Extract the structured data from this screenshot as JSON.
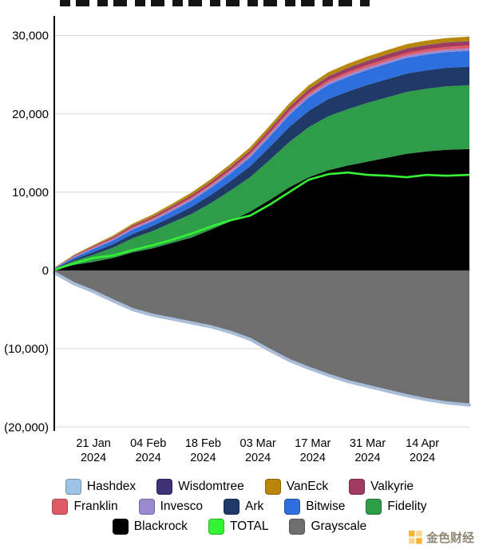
{
  "watermark": {
    "text": "金色财经"
  },
  "legend": {
    "rows": [
      [
        "Hashdex",
        "Wisdomtree",
        "VanEck",
        "Valkyrie"
      ],
      [
        "Franklin",
        "Invesco",
        "Ark",
        "Bitwise",
        "Fidelity"
      ],
      [
        "Blackrock",
        "TOTAL",
        "Grayscale"
      ]
    ]
  },
  "chart_data": {
    "type": "area",
    "stacked": true,
    "ylim": [
      -20500,
      32500
    ],
    "x_days": [
      0,
      5,
      10,
      15,
      20,
      25,
      30,
      35,
      40,
      45,
      50,
      55,
      60,
      65,
      70,
      75,
      80,
      85,
      90,
      95,
      100,
      106
    ],
    "x_ticks": [
      {
        "day": 10,
        "line1": "21 Jan",
        "line2": "2024"
      },
      {
        "day": 24,
        "line1": "04 Feb",
        "line2": "2024"
      },
      {
        "day": 38,
        "line1": "18 Feb",
        "line2": "2024"
      },
      {
        "day": 52,
        "line1": "03 Mar",
        "line2": "2024"
      },
      {
        "day": 66,
        "line1": "17 Mar",
        "line2": "2024"
      },
      {
        "day": 80,
        "line1": "31 Mar",
        "line2": "2024"
      },
      {
        "day": 94,
        "line1": "14 Apr",
        "line2": "2024"
      }
    ],
    "y_ticks": [
      {
        "value": 30000,
        "label": "30,000"
      },
      {
        "value": 20000,
        "label": "20,000"
      },
      {
        "value": 10000,
        "label": "10,000"
      },
      {
        "value": 0,
        "label": "0"
      },
      {
        "value": -10000,
        "label": "(10,000)"
      },
      {
        "value": -20000,
        "label": "(20,000)"
      }
    ],
    "series": [
      {
        "name": "Blackrock",
        "role": "pos",
        "color": "#000000",
        "values": [
          100,
          700,
          1100,
          1600,
          2300,
          2800,
          3500,
          4200,
          5200,
          6300,
          7500,
          9000,
          10600,
          11900,
          12800,
          13400,
          13900,
          14400,
          14900,
          15200,
          15400,
          15500
        ]
      },
      {
        "name": "Fidelity",
        "role": "pos",
        "color": "#2E9C49",
        "values": [
          80,
          500,
          900,
          1300,
          1800,
          2200,
          2600,
          3000,
          3400,
          3900,
          4400,
          5100,
          5800,
          6400,
          6900,
          7200,
          7500,
          7700,
          7900,
          8000,
          8100,
          8150
        ]
      },
      {
        "name": "Ark",
        "role": "pos",
        "color": "#1F3A67",
        "values": [
          30,
          200,
          350,
          450,
          550,
          650,
          750,
          900,
          1050,
          1200,
          1400,
          1650,
          1900,
          2100,
          2200,
          2260,
          2300,
          2330,
          2350,
          2360,
          2370,
          2380
        ]
      },
      {
        "name": "Bitwise",
        "role": "pos",
        "color": "#2E6FDE",
        "values": [
          50,
          250,
          400,
          480,
          560,
          620,
          700,
          800,
          900,
          1000,
          1150,
          1350,
          1550,
          1700,
          1800,
          1870,
          1920,
          1960,
          1990,
          2010,
          2020,
          2030
        ]
      },
      {
        "name": "Invesco",
        "role": "pos",
        "color": "#9C8AD0",
        "values": [
          20,
          80,
          120,
          150,
          180,
          200,
          220,
          240,
          255,
          265,
          275,
          285,
          295,
          300,
          305,
          308,
          310,
          312,
          314,
          315,
          316,
          317
        ]
      },
      {
        "name": "Franklin",
        "role": "pos",
        "color": "#DE5B66",
        "values": [
          20,
          60,
          90,
          110,
          130,
          145,
          160,
          175,
          190,
          205,
          220,
          240,
          260,
          280,
          295,
          310,
          320,
          330,
          338,
          342,
          345,
          347
        ]
      },
      {
        "name": "Valkyrie",
        "role": "pos",
        "color": "#A13A5E",
        "values": [
          20,
          80,
          120,
          160,
          190,
          215,
          240,
          265,
          290,
          315,
          340,
          370,
          400,
          425,
          445,
          460,
          470,
          478,
          484,
          488,
          490,
          492
        ]
      },
      {
        "name": "Wisdomtree",
        "role": "pos",
        "color": "#3F3175",
        "values": [
          5,
          12,
          18,
          22,
          26,
          30,
          33,
          36,
          39,
          42,
          45,
          49,
          53,
          57,
          60,
          63,
          65,
          67,
          68,
          69,
          70,
          71
        ]
      },
      {
        "name": "Hashdex",
        "role": "pos",
        "color": "#9DC3E6",
        "values": [
          1,
          2,
          3,
          3,
          4,
          4,
          5,
          5,
          6,
          6,
          7,
          7,
          8,
          8,
          9,
          9,
          9,
          10,
          10,
          10,
          10,
          10
        ]
      },
      {
        "name": "VanEck",
        "role": "pos",
        "color": "#B8860B",
        "values": [
          30,
          100,
          150,
          190,
          220,
          250,
          280,
          310,
          340,
          370,
          400,
          430,
          460,
          490,
          510,
          525,
          537,
          546,
          552,
          556,
          558,
          560
        ]
      },
      {
        "name": "Grayscale",
        "role": "neg",
        "color": "#6F6F6F",
        "edge_color": "#A9BCD8",
        "values": [
          -300,
          -1700,
          -2700,
          -3900,
          -5000,
          -5700,
          -6200,
          -6700,
          -7200,
          -7900,
          -8800,
          -10200,
          -11500,
          -12500,
          -13400,
          -14200,
          -14800,
          -15400,
          -16000,
          -16500,
          -16900,
          -17200
        ]
      },
      {
        "name": "TOTAL",
        "role": "line",
        "color": "#35F235",
        "values": [
          60,
          900,
          1600,
          1900,
          2600,
          3200,
          3900,
          4700,
          5600,
          6400,
          7000,
          8400,
          10000,
          11600,
          12300,
          12500,
          12200,
          12100,
          11900,
          12200,
          12100,
          12200
        ]
      }
    ]
  }
}
